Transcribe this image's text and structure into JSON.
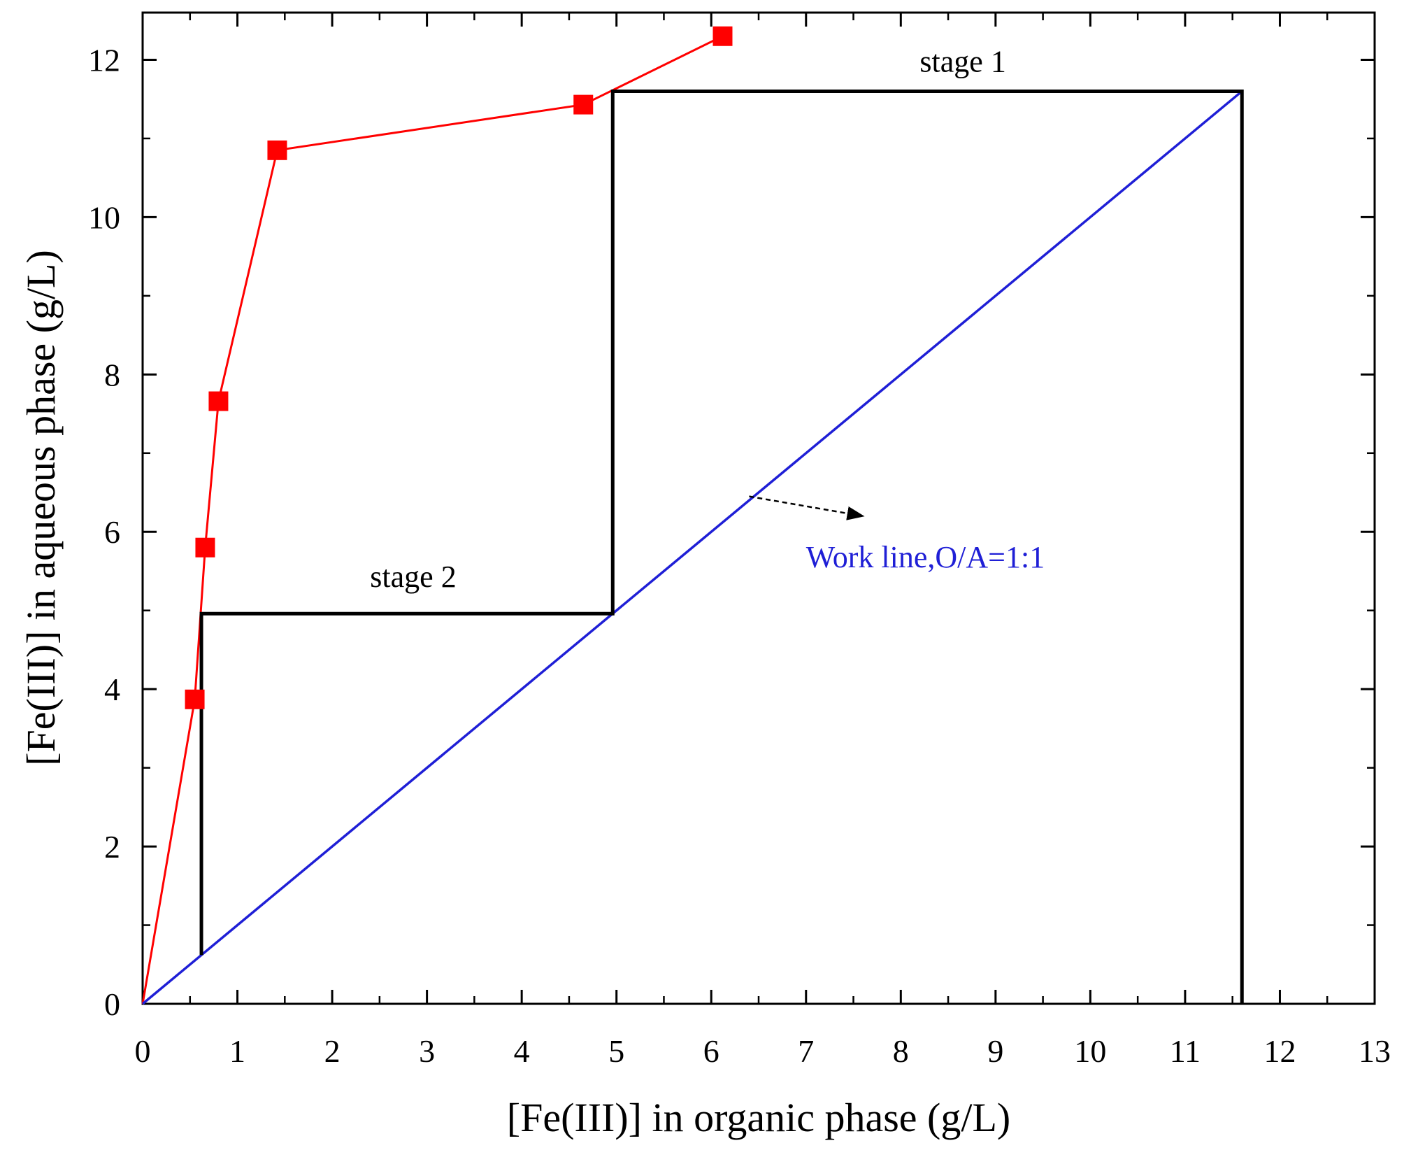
{
  "chart_data": {
    "type": "line",
    "xlabel": "[Fe(III)] in organic phase (g/L)",
    "ylabel": "[Fe(III)] in aqueous phase (g/L)",
    "xlim": [
      0,
      13
    ],
    "ylim": [
      0,
      12.6
    ],
    "x_ticks": [
      "0",
      "1",
      "2",
      "3",
      "4",
      "5",
      "6",
      "7",
      "8",
      "9",
      "10",
      "11",
      "12",
      "13"
    ],
    "y_ticks": [
      "0",
      "2",
      "4",
      "6",
      "8",
      "10",
      "12"
    ],
    "grid": false,
    "series": [
      {
        "kind": "line-markers",
        "color": "#ff0000",
        "marker": "square",
        "x": [
          0,
          0.55,
          0.66,
          0.8,
          1.42,
          4.65,
          6.12
        ],
        "y": [
          0,
          3.87,
          5.8,
          7.66,
          10.85,
          11.43,
          12.3
        ],
        "marker_from": 1
      },
      {
        "kind": "line",
        "color": "#1f1fd6",
        "x": [
          0,
          11.6
        ],
        "y": [
          0,
          11.6
        ]
      },
      {
        "kind": "steps",
        "color": "#000000",
        "x": [
          11.6,
          11.6,
          4.96,
          4.96,
          0.62,
          0.62
        ],
        "y": [
          0,
          11.6,
          11.6,
          4.96,
          4.96,
          0.62
        ]
      }
    ],
    "annotations": [
      {
        "text": "stage 1",
        "x": 8.2,
        "y": 11.85,
        "color": "#000000"
      },
      {
        "text": "stage 2",
        "x": 2.4,
        "y": 5.3,
        "color": "#000000"
      },
      {
        "text": "Work line,O/A=1:1",
        "x": 7.0,
        "y": 5.55,
        "color": "#1f1fd6"
      }
    ],
    "arrow": {
      "from": [
        6.4,
        6.45
      ],
      "to": [
        7.6,
        6.2
      ],
      "color": "#000000"
    }
  }
}
